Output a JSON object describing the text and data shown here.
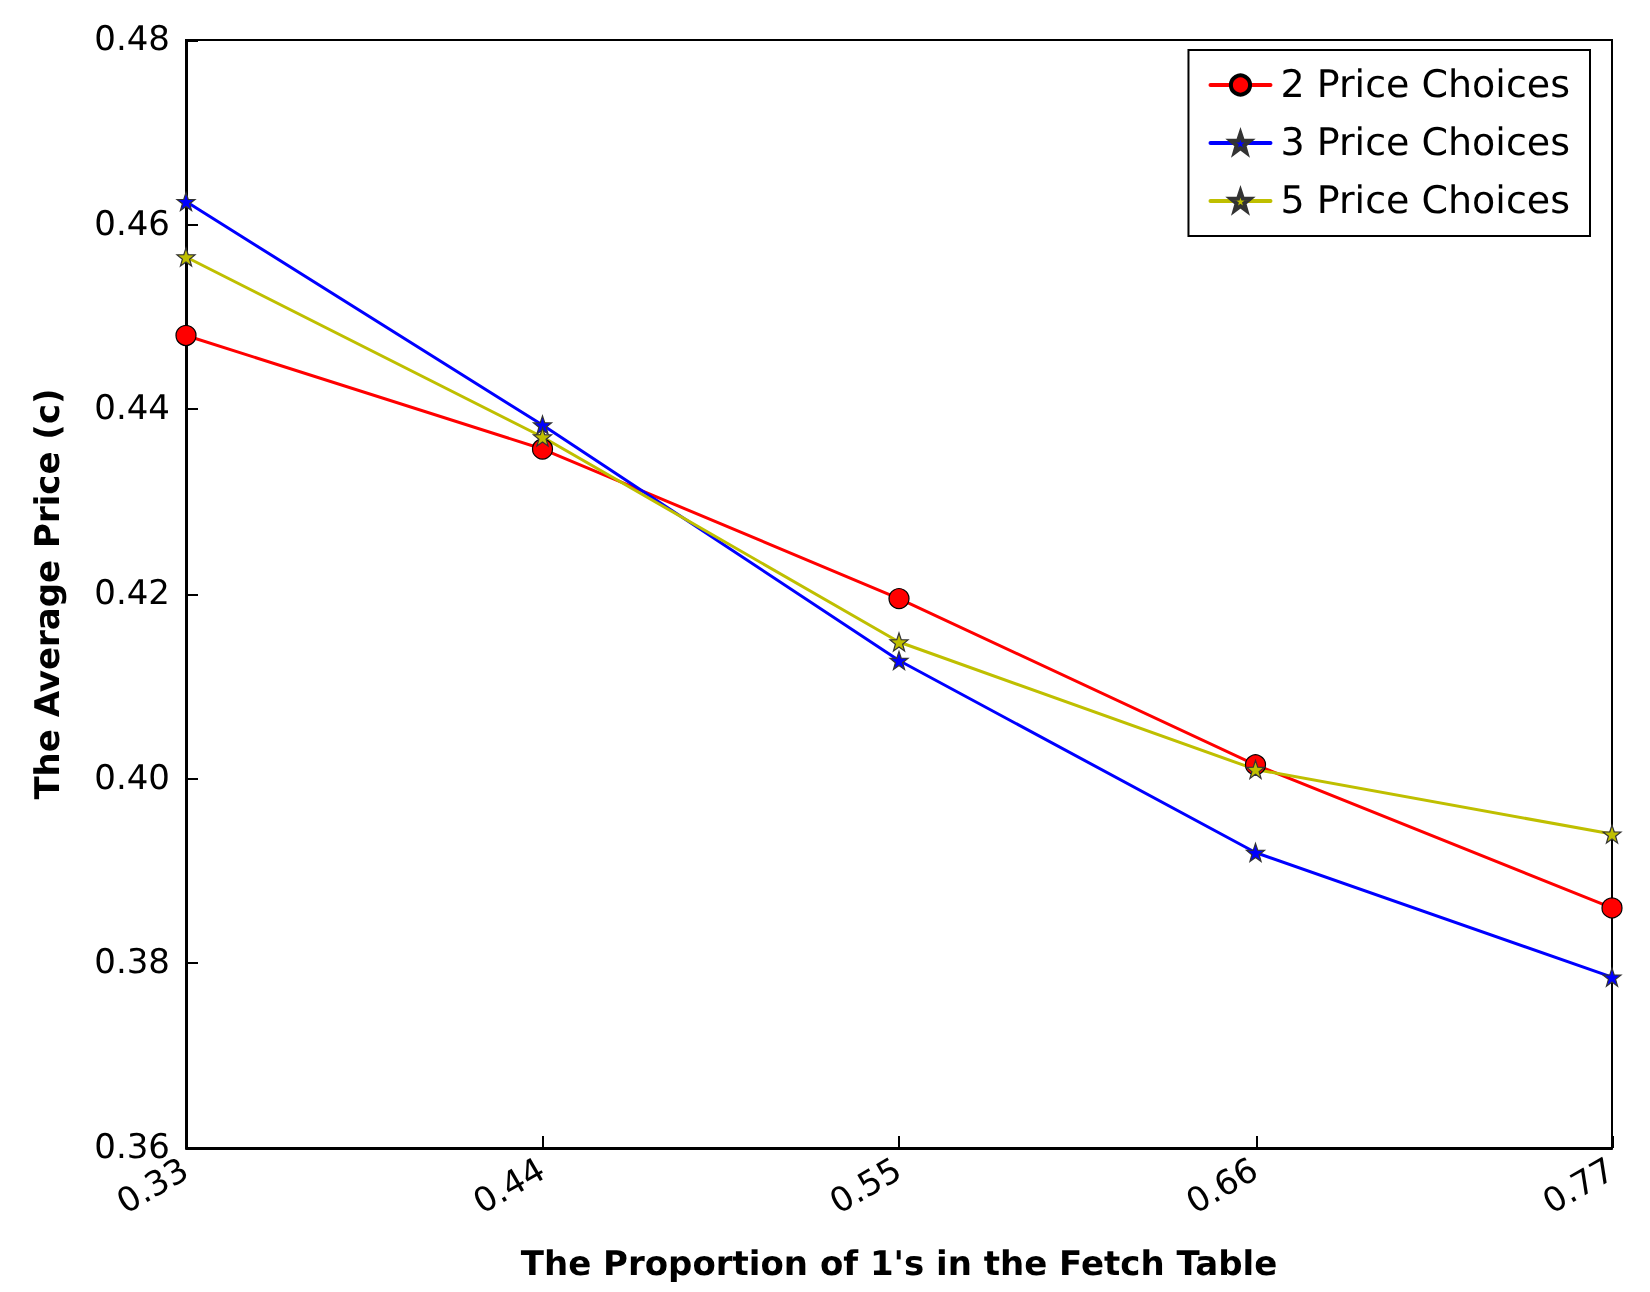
{
  "chart_data": {
    "type": "line",
    "xlabel": "The Proportion of 1's in the Fetch Table",
    "ylabel": "The Average Price (c)",
    "x": [
      0.33,
      0.44,
      0.55,
      0.66,
      0.77
    ],
    "xlim": [
      0.33,
      0.77
    ],
    "xticks": [
      0.33,
      0.44,
      0.55,
      0.66,
      0.77
    ],
    "ylim": [
      0.36,
      0.48
    ],
    "yticks": [
      0.36,
      0.38,
      {
        "value": 0.4,
        "label": "0.40"
      },
      0.42,
      0.44,
      0.46,
      0.48
    ],
    "grid": false,
    "legend": "top right",
    "series": [
      {
        "name": "2 Price Choices",
        "color": "#ff0000",
        "marker": "circle",
        "values": [
          0.448,
          0.4357,
          0.4195,
          0.4015,
          0.386
        ]
      },
      {
        "name": "3 Price Choices",
        "color": "#0000ff",
        "marker": "star",
        "values": [
          0.4625,
          0.4383,
          0.4128,
          0.392,
          0.3785
        ]
      },
      {
        "name": "5 Price Choices",
        "color": "#bfbf00",
        "marker": "star",
        "values": [
          0.4565,
          0.437,
          0.4148,
          0.401,
          0.394
        ]
      }
    ]
  }
}
